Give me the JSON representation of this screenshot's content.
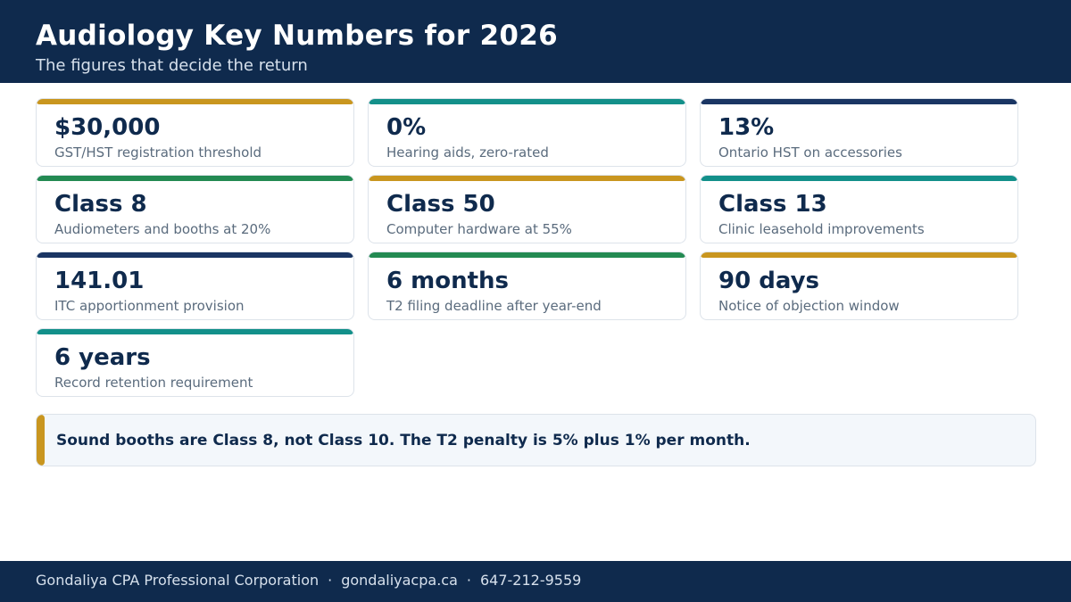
{
  "header": {
    "title": "Audiology Key Numbers for 2026",
    "subtitle": "The figures that decide the return"
  },
  "colors": {
    "navy": "#0f2a4d",
    "gold": "#c9961f",
    "teal": "#13908a",
    "green": "#238a52"
  },
  "cards": [
    {
      "value": "$30,000",
      "label": "GST/HST registration threshold",
      "color": "#c9961f"
    },
    {
      "value": "0%",
      "label": "Hearing aids, zero-rated",
      "color": "#13908a"
    },
    {
      "value": "13%",
      "label": "Ontario HST on accessories",
      "color": "#1a3563"
    },
    {
      "value": "Class 8",
      "label": "Audiometers and booths at 20%",
      "color": "#238a52"
    },
    {
      "value": "Class 50",
      "label": "Computer hardware at 55%",
      "color": "#c9961f"
    },
    {
      "value": "Class 13",
      "label": "Clinic leasehold improvements",
      "color": "#13908a"
    },
    {
      "value": "141.01",
      "label": "ITC apportionment provision",
      "color": "#1a3563"
    },
    {
      "value": "6 months",
      "label": "T2 filing deadline after year-end",
      "color": "#238a52"
    },
    {
      "value": "90 days",
      "label": "Notice of objection window",
      "color": "#c9961f"
    },
    {
      "value": "6 years",
      "label": "Record retention requirement",
      "color": "#13908a"
    }
  ],
  "note": {
    "text": "Sound booths are Class 8, not Class 10. The T2 penalty is 5% plus 1% per month."
  },
  "footer": {
    "company": "Gondaliya CPA Professional Corporation",
    "separator": "·",
    "website": "gondaliyacpa.ca",
    "phone": "647-212-9559"
  }
}
